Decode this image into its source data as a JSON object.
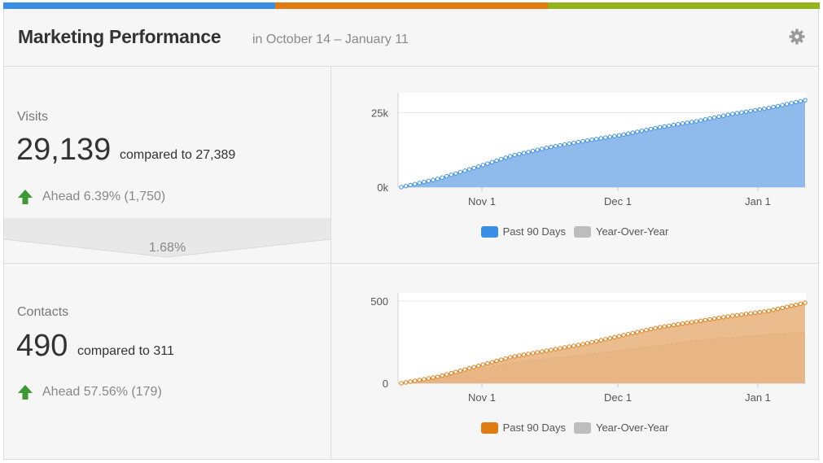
{
  "colors": {
    "blue": "#3a8ee6",
    "orange": "#e07b12",
    "green": "#93b41b",
    "visits_fill": "#8ebbec",
    "contacts_fill": "#e8b07a",
    "yoy_gray": "#bdbdbd"
  },
  "header": {
    "title": "Marketing Performance",
    "subtitle": "in October 14 – January 11",
    "settings_icon": "gear-icon"
  },
  "visits": {
    "label": "Visits",
    "value": "29,139",
    "compare": "compared to 27,389",
    "ahead": "Ahead 6.39% (1,750)",
    "difference": "1.68%"
  },
  "contacts": {
    "label": "Contacts",
    "value": "490",
    "compare": "compared to 311",
    "ahead": "Ahead 57.56% (179)"
  },
  "legend": {
    "past": "Past 90 Days",
    "yoy": "Year-Over-Year"
  },
  "chart_data": [
    {
      "type": "area",
      "name": "visits",
      "x_ticks": [
        "Nov 1",
        "Dec 1",
        "Jan 1"
      ],
      "y_ticks": [
        "0k",
        "25k"
      ],
      "ylim": [
        0,
        30000
      ],
      "series": [
        {
          "name": "Past 90 Days",
          "values": [
            0,
            2800,
            6500,
            10500,
            13300,
            15500,
            17500,
            20000,
            22000,
            24500,
            26500,
            29139
          ]
        }
      ]
    },
    {
      "type": "area",
      "name": "contacts",
      "x_ticks": [
        "Nov 1",
        "Dec 1",
        "Jan 1"
      ],
      "y_ticks": [
        "0",
        "500"
      ],
      "ylim": [
        0,
        520
      ],
      "series": [
        {
          "name": "Past 90 Days",
          "values": [
            0,
            40,
            100,
            160,
            200,
            240,
            290,
            340,
            375,
            410,
            440,
            490
          ]
        },
        {
          "name": "Year-Over-Year",
          "values": [
            0,
            30,
            80,
            125,
            150,
            175,
            200,
            230,
            260,
            280,
            295,
            311
          ]
        }
      ]
    }
  ]
}
